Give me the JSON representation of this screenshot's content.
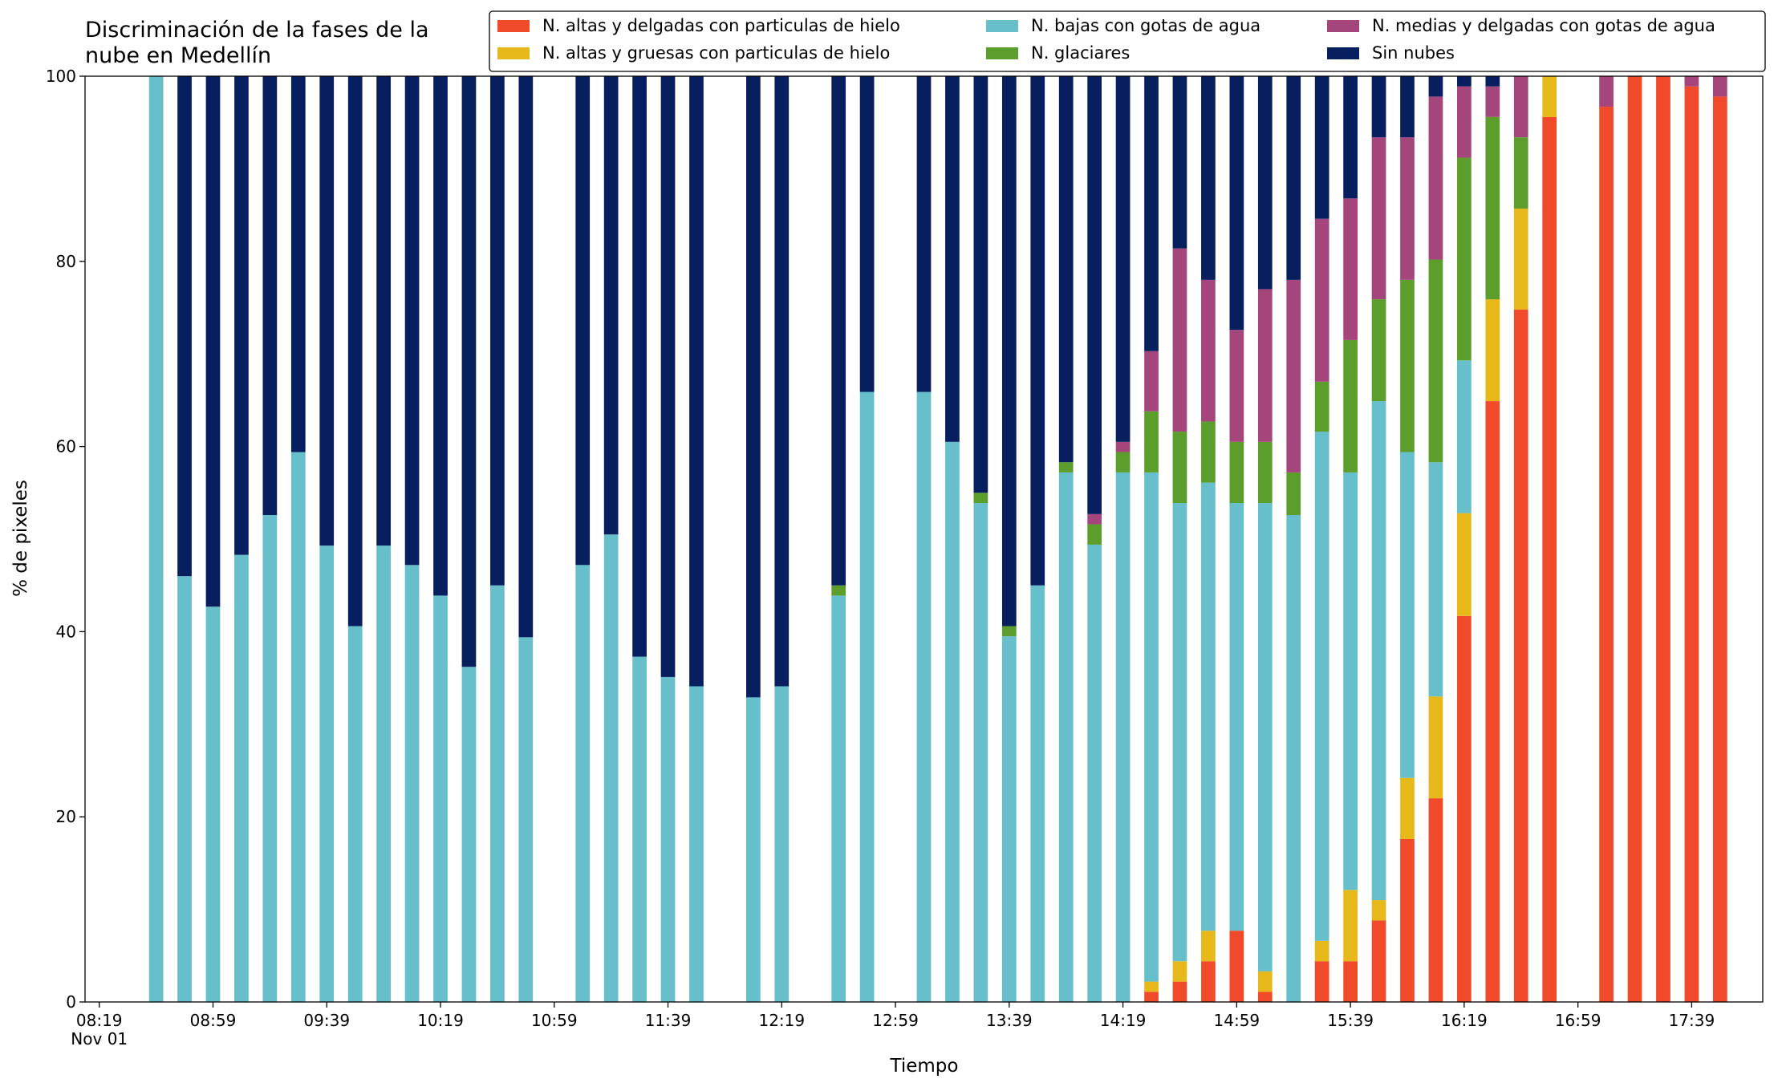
{
  "chart_data": {
    "type": "stacked-bar",
    "title": "Discriminación de la fases de la\nnube en Medellín",
    "xlabel": "Tiempo",
    "ylabel": "% de pixeles",
    "date_label": "Nov 01",
    "x": [
      "08:39",
      "08:49",
      "08:59",
      "09:09",
      "09:19",
      "09:29",
      "09:39",
      "09:49",
      "09:59",
      "10:09",
      "10:19",
      "10:29",
      "10:39",
      "10:49",
      "11:09",
      "11:19",
      "11:29",
      "11:39",
      "11:49",
      "12:09",
      "12:19",
      "12:39",
      "12:49",
      "13:09",
      "13:19",
      "13:29",
      "13:39",
      "13:49",
      "13:59",
      "14:09",
      "14:19",
      "14:29",
      "14:39",
      "14:49",
      "14:59",
      "15:09",
      "15:19",
      "15:29",
      "15:39",
      "15:49",
      "15:59",
      "16:09",
      "16:19",
      "16:29",
      "16:39",
      "16:49",
      "17:09",
      "17:19",
      "17:29",
      "17:39",
      "17:49"
    ],
    "xlim": [
      "08:14",
      "18:04"
    ],
    "xticks": [
      "08:19",
      "08:59",
      "09:39",
      "10:19",
      "10:59",
      "11:39",
      "12:19",
      "12:59",
      "13:39",
      "14:19",
      "14:59",
      "15:39",
      "16:19",
      "16:59",
      "17:39"
    ],
    "ylim": [
      0,
      100
    ],
    "yticks": [
      0,
      20,
      40,
      60,
      80,
      100
    ],
    "legend_position": "top-right",
    "series": [
      {
        "name": "N. altas y delgadas con particulas de hielo",
        "color": "#f04a2b",
        "values": [
          0,
          0,
          0,
          0,
          0,
          0,
          0,
          0,
          0,
          0,
          0,
          0,
          0,
          0,
          0,
          0,
          0,
          0,
          0,
          0,
          0,
          0,
          0,
          0,
          0,
          0,
          0,
          0,
          0,
          0,
          0,
          1.1,
          2.2,
          4.4,
          7.7,
          1.1,
          0,
          4.4,
          4.4,
          8.8,
          17.6,
          22.0,
          41.7,
          64.9,
          74.8,
          95.6,
          96.7,
          100,
          100,
          98.9,
          97.8
        ]
      },
      {
        "name": "N. altas y gruesas con particulas de hielo",
        "color": "#e6b81a",
        "values": [
          0,
          0,
          0,
          0,
          0,
          0,
          0,
          0,
          0,
          0,
          0,
          0,
          0,
          0,
          0,
          0,
          0,
          0,
          0,
          0,
          0,
          0,
          0,
          0,
          0,
          0,
          0,
          0,
          0,
          0,
          0,
          1.1,
          2.2,
          3.3,
          0,
          2.2,
          0,
          2.2,
          7.7,
          2.2,
          6.6,
          11.0,
          11.1,
          11.0,
          10.9,
          4.4,
          0,
          0,
          0,
          0,
          0
        ]
      },
      {
        "name": "N. bajas con gotas de agua",
        "color": "#66bfca",
        "values": [
          100,
          46.0,
          42.7,
          48.3,
          52.6,
          59.4,
          49.3,
          40.6,
          49.3,
          47.2,
          43.9,
          36.2,
          45.0,
          39.4,
          47.2,
          50.5,
          37.3,
          35.1,
          34.1,
          32.9,
          34.1,
          43.9,
          65.9,
          65.9,
          60.5,
          53.9,
          39.5,
          45.0,
          57.2,
          49.4,
          57.2,
          55.0,
          49.5,
          48.4,
          46.2,
          50.6,
          52.6,
          55.0,
          45.1,
          53.9,
          35.2,
          25.3,
          16.5,
          0,
          0,
          0,
          0,
          0,
          0,
          0,
          0
        ]
      },
      {
        "name": "N. glaciares",
        "color": "#5c9e2b",
        "values": [
          0,
          0,
          0,
          0,
          0,
          0,
          0,
          0,
          0,
          0,
          0,
          0,
          0,
          0,
          0,
          0,
          0,
          0,
          0,
          0,
          0,
          1.1,
          0,
          0,
          0,
          1.1,
          1.1,
          0,
          1.1,
          2.2,
          2.2,
          6.6,
          7.7,
          6.6,
          6.6,
          6.6,
          4.6,
          5.4,
          14.3,
          11.0,
          18.6,
          21.9,
          21.9,
          19.7,
          7.7,
          0,
          0,
          0,
          0,
          0,
          0
        ]
      },
      {
        "name": "N. medias y delgadas con gotas de agua",
        "color": "#a4457c",
        "values": [
          0,
          0,
          0,
          0,
          0,
          0,
          0,
          0,
          0,
          0,
          0,
          0,
          0,
          0,
          0,
          0,
          0,
          0,
          0,
          0,
          0,
          0,
          0,
          0,
          0,
          0,
          0,
          0,
          0,
          1.1,
          1.1,
          6.5,
          19.8,
          15.3,
          12.1,
          16.5,
          20.8,
          17.6,
          15.3,
          17.5,
          15.4,
          17.6,
          7.7,
          3.3,
          6.6,
          0,
          3.3,
          0,
          0,
          1.1,
          2.2
        ]
      },
      {
        "name": "Sin nubes",
        "color": "#071f5e",
        "values": [
          0,
          54.0,
          57.3,
          51.7,
          47.4,
          40.6,
          50.7,
          59.4,
          50.7,
          52.8,
          56.1,
          63.8,
          55.0,
          60.6,
          52.8,
          49.5,
          62.7,
          64.9,
          65.9,
          67.1,
          65.9,
          55.0,
          34.1,
          34.1,
          39.5,
          45.0,
          59.4,
          55.0,
          41.7,
          47.3,
          39.5,
          29.7,
          18.6,
          22.0,
          27.4,
          23.0,
          22.0,
          15.4,
          13.2,
          6.6,
          6.6,
          2.2,
          1.1,
          1.1,
          0,
          0,
          0,
          0,
          0,
          0,
          0
        ]
      }
    ]
  }
}
